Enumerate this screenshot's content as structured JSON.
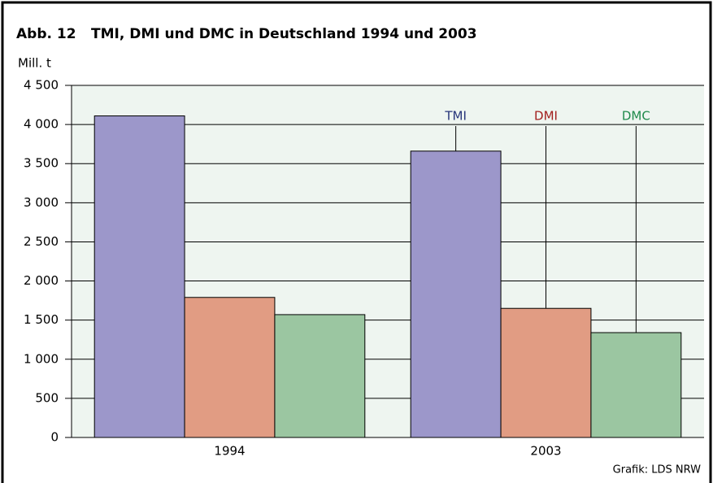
{
  "chart_data": {
    "type": "bar",
    "figure_number": "Abb. 12",
    "title": "TMI, DMI und DMC in Deutschland 1994 und 2003",
    "y_label": "Mill. t",
    "source": "Grafik: LDS NRW",
    "categories": [
      "1994",
      "2003"
    ],
    "series": [
      {
        "name": "TMI",
        "color": "#9c97ca",
        "label_color": "#27357a",
        "values": [
          4110,
          3660
        ]
      },
      {
        "name": "DMI",
        "color": "#e19c83",
        "label_color": "#a3201f",
        "values": [
          1790,
          1650
        ]
      },
      {
        "name": "DMC",
        "color": "#9bc6a1",
        "label_color": "#1f8a4b",
        "values": [
          1570,
          1340
        ]
      }
    ],
    "ylim": [
      0,
      4500
    ],
    "yticks": [
      0,
      500,
      {
        "value": 1000,
        "label": "1 000"
      },
      {
        "value": 1500,
        "label": "1 500"
      },
      {
        "value": 2000,
        "label": "2 000"
      },
      {
        "value": 2500,
        "label": "2 500"
      },
      {
        "value": 3000,
        "label": "3 000"
      },
      {
        "value": 3500,
        "label": "3 500"
      },
      {
        "value": 4000,
        "label": "4 000"
      },
      {
        "value": 4500,
        "label": "4 500"
      }
    ],
    "grid": true,
    "plot_background": "#eef5f0"
  }
}
